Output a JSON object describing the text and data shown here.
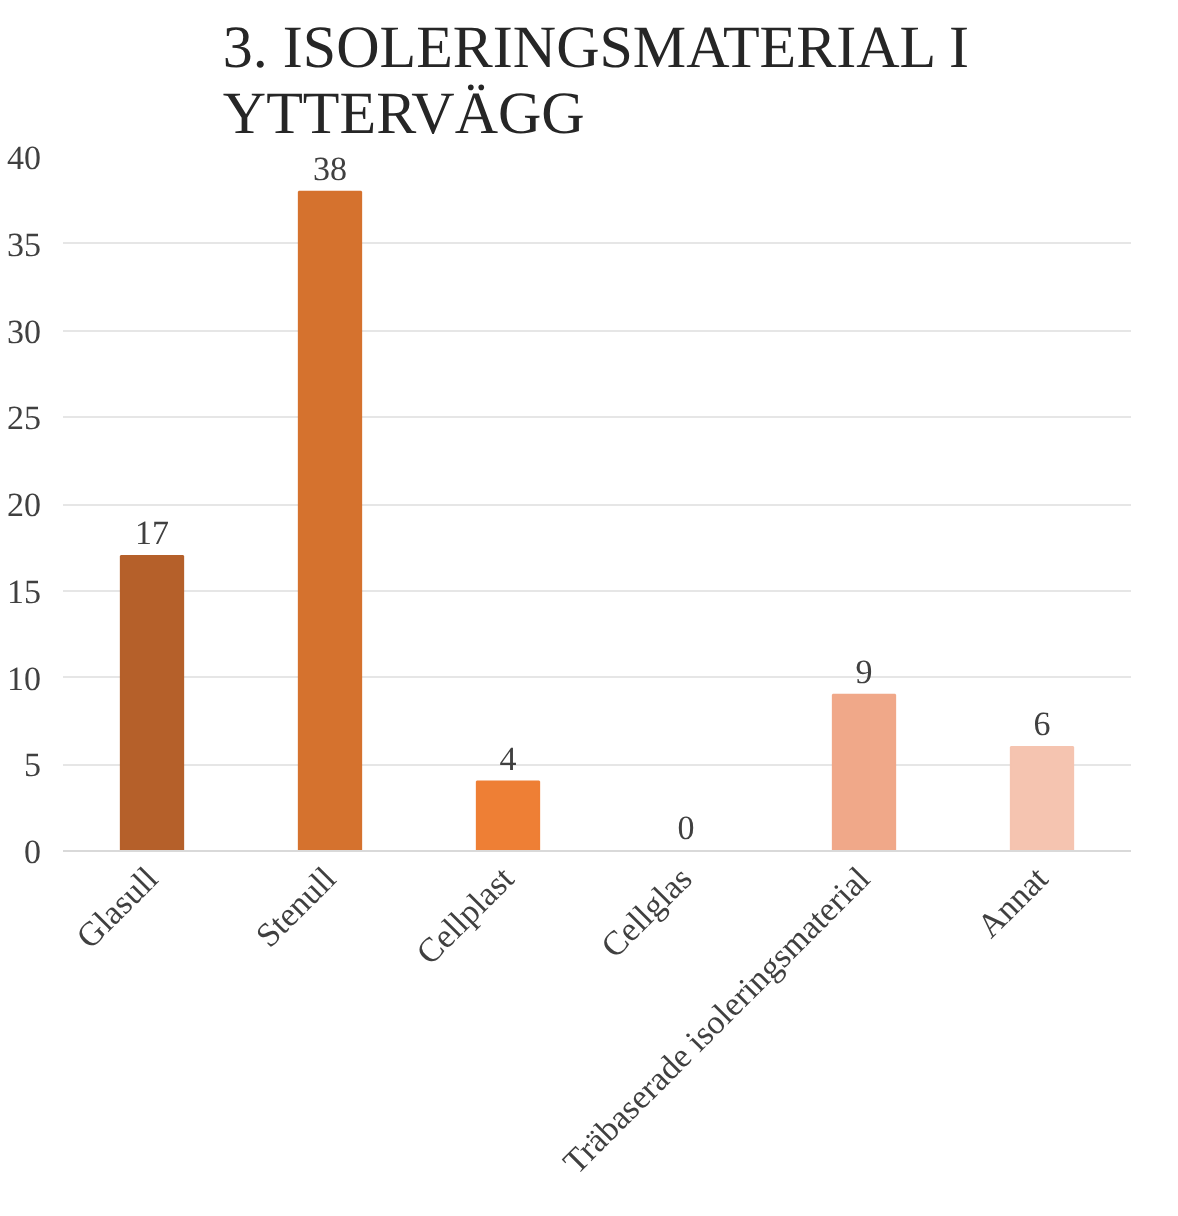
{
  "chart_data": {
    "type": "bar",
    "title": "3. ISOLERINGSMATERIAL I YTTERVÄGG",
    "categories": [
      "Glasull",
      "Stenull",
      "Cellplast",
      "Cellglas",
      "Träbaserade isoleringsmaterial",
      "Annat"
    ],
    "values": [
      17,
      38,
      4,
      0,
      9,
      6
    ],
    "colors": [
      "#b5602a",
      "#d5722e",
      "#ee7f35",
      "#f39a66",
      "#f0a889",
      "#f5c4b0"
    ],
    "ylim": [
      0,
      40
    ],
    "yticks": [
      0,
      5,
      10,
      15,
      20,
      25,
      30,
      35,
      40
    ],
    "grid": "y",
    "data_labels": true
  }
}
